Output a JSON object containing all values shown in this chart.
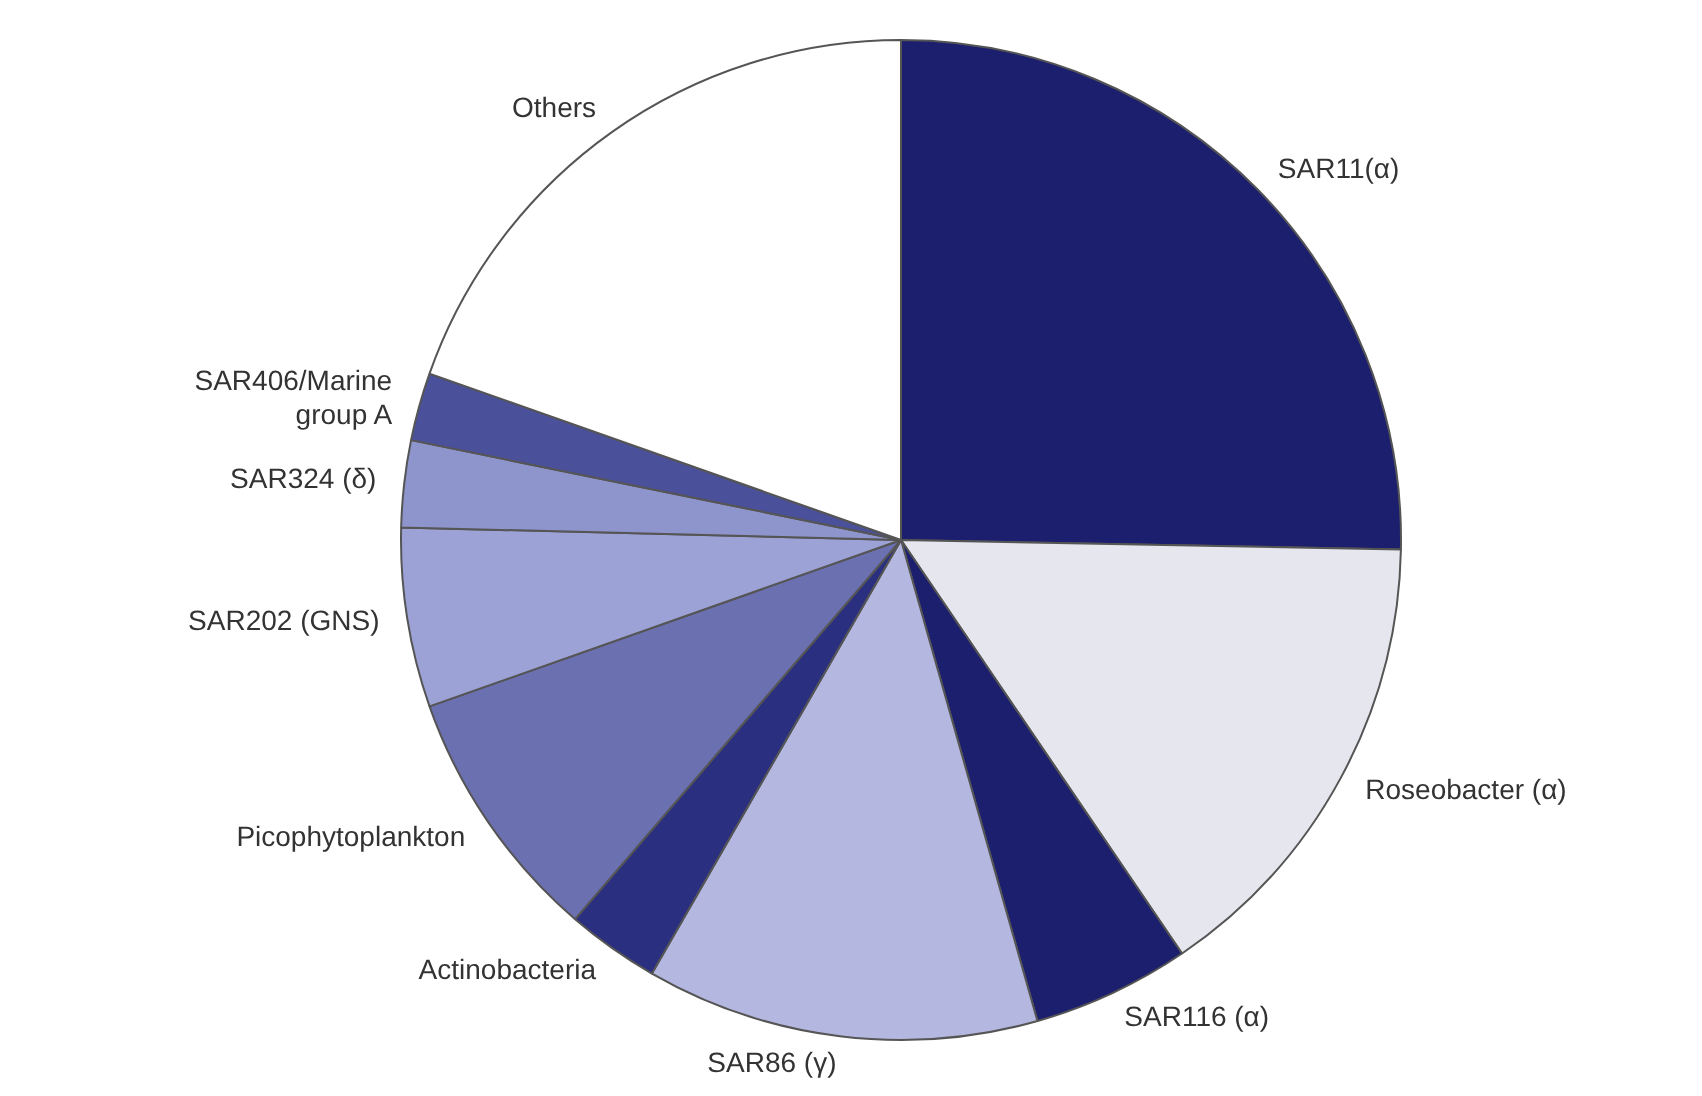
{
  "chart_data": {
    "type": "pie",
    "categories": [
      "SAR11(α)",
      "Roseobacter (α)",
      "SAR116 (α)",
      "SAR86 (γ)",
      "Actinobacteria",
      "Picophytoplankton",
      "SAR202 (GNS)",
      "SAR324 (δ)",
      "SAR406/Marine group A",
      "Others"
    ],
    "values": [
      25.3,
      15.2,
      5.1,
      12.7,
      3.0,
      8.3,
      5.8,
      2.8,
      2.2,
      19.6
    ],
    "colors": [
      "#1c1f6e",
      "#e6e7ee",
      "#1c1f6e",
      "#b4b8e0",
      "#2a2f80",
      "#6a70b0",
      "#9ca2d6",
      "#8e94cc",
      "#4a509a",
      "#ffffff"
    ],
    "legend": false
  }
}
